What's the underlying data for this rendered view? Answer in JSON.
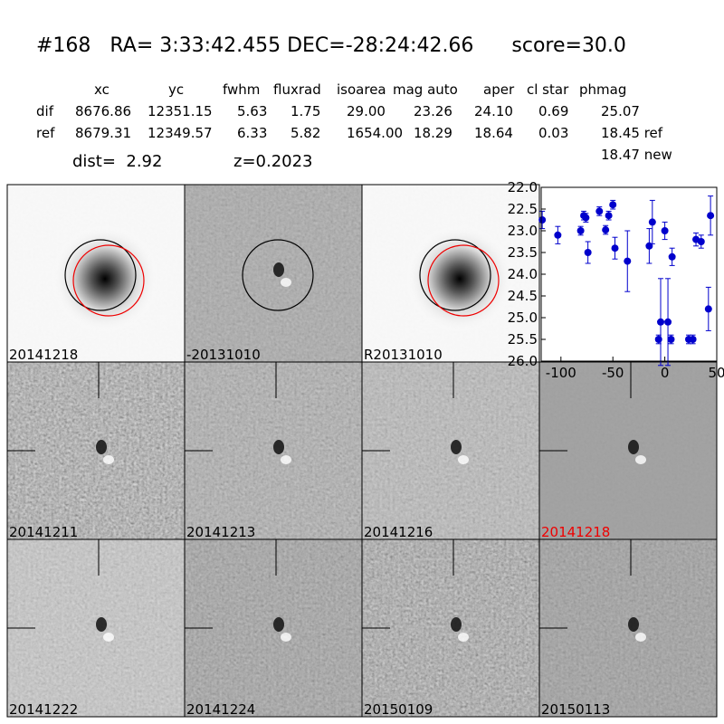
{
  "header": {
    "title": "#168   RA= 3:33:42.455 DEC=-28:24:42.66      score=30.0",
    "dist": "dist=  2.92",
    "z": "z=0.2023"
  },
  "table": {
    "columns": [
      "xc",
      "yc",
      "fwhm",
      "fluxrad",
      "isoarea",
      "mag auto",
      "aper",
      "cl star",
      "phmag"
    ],
    "rows": [
      {
        "label": "dif",
        "cells": [
          "8676.86",
          "12351.15",
          "5.63",
          "1.75",
          "29.00",
          "23.26",
          "24.10",
          "0.69",
          "25.07"
        ]
      },
      {
        "label": "ref",
        "cells": [
          "8679.31",
          "12349.57",
          "6.33",
          "5.82",
          "1654.00",
          "18.29",
          "18.64",
          "0.03",
          "18.45 ref"
        ]
      }
    ],
    "phmag_new": "18.47 new"
  },
  "panels": [
    "20141218",
    "-20131010",
    "R20131010",
    "20141211",
    "20141213",
    "20141216",
    "20141218",
    "20141222",
    "20141224",
    "20150109",
    "20150113"
  ],
  "chart_data": {
    "type": "scatter",
    "color": "#0000cc",
    "x": [
      -118,
      -103,
      -81,
      -78,
      -76,
      -74,
      -63,
      -57,
      -54,
      -50,
      -48,
      -36,
      -15,
      -12,
      -6,
      -4,
      0,
      3,
      6,
      7,
      23,
      27,
      30,
      35,
      42,
      44
    ],
    "values": [
      22.75,
      23.1,
      23.0,
      22.65,
      22.7,
      23.5,
      22.55,
      22.98,
      22.65,
      22.4,
      23.4,
      23.7,
      23.35,
      22.8,
      25.5,
      25.1,
      23.0,
      25.1,
      25.5,
      23.6,
      25.5,
      25.5,
      23.2,
      23.25,
      24.8,
      22.65
    ],
    "errors": [
      0.2,
      0.2,
      0.1,
      0.1,
      0.1,
      0.25,
      0.1,
      0.1,
      0.1,
      0.1,
      0.25,
      0.7,
      0.4,
      0.5,
      0.1,
      1.0,
      0.2,
      1.0,
      0.1,
      0.2,
      0.1,
      0.1,
      0.15,
      0.15,
      0.5,
      0.45
    ],
    "xlim": [
      -119,
      50
    ],
    "xticks": [
      -100,
      -50,
      0,
      50
    ],
    "ylim": [
      22,
      26
    ],
    "invert_y": true,
    "yticks": [
      {
        "value": 22,
        "label": "22.0"
      },
      {
        "value": 22.5,
        "label": "22.5"
      },
      {
        "value": 23,
        "label": "23.0"
      },
      {
        "value": 23.5,
        "label": "23.5"
      },
      {
        "value": 24,
        "label": "24.0"
      },
      {
        "value": 24.5,
        "label": "24.5"
      },
      {
        "value": 25,
        "label": "25.0"
      },
      {
        "value": 25.5,
        "label": "25.5"
      },
      {
        "value": 26,
        "label": "26.0"
      }
    ]
  }
}
